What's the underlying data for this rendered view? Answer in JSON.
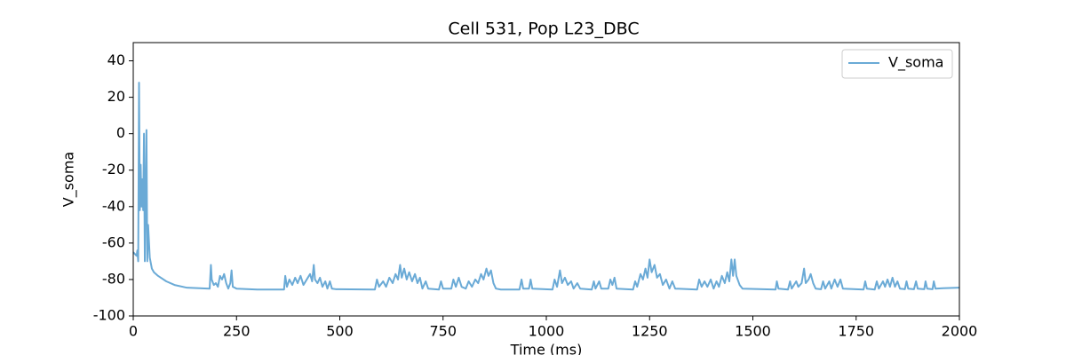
{
  "chart_data": {
    "type": "line",
    "title": "Cell 531, Pop L23_DBC",
    "xlabel": "Time (ms)",
    "ylabel": "V_soma",
    "xlim": [
      0,
      2000
    ],
    "ylim": [
      -100,
      50
    ],
    "xticks": [
      0,
      250,
      500,
      750,
      1000,
      1250,
      1500,
      1750,
      2000
    ],
    "yticks": [
      -100,
      -80,
      -60,
      -40,
      -20,
      0,
      20,
      40
    ],
    "legend": "upper right",
    "grid": false,
    "x": [
      0,
      4,
      8,
      10,
      12,
      14,
      16,
      18,
      20,
      22,
      24,
      26,
      28,
      30,
      32,
      34,
      36,
      40,
      45,
      50,
      60,
      80,
      100,
      130,
      185,
      188,
      190,
      195,
      200,
      205,
      210,
      215,
      220,
      225,
      230,
      235,
      238,
      241,
      250,
      300,
      365,
      368,
      372,
      378,
      385,
      392,
      398,
      405,
      412,
      420,
      428,
      433,
      437,
      440,
      446,
      452,
      458,
      465,
      470,
      476,
      481,
      490,
      585,
      590,
      595,
      605,
      612,
      620,
      628,
      635,
      641,
      646,
      650,
      656,
      662,
      668,
      675,
      682,
      688,
      694,
      700,
      708,
      714,
      740,
      745,
      750,
      770,
      775,
      781,
      788,
      795,
      805,
      812,
      820,
      828,
      835,
      842,
      848,
      855,
      860,
      866,
      872,
      878,
      890,
      935,
      940,
      944,
      958,
      962,
      966,
      1015,
      1020,
      1026,
      1033,
      1038,
      1045,
      1052,
      1060,
      1066,
      1075,
      1082,
      1110,
      1115,
      1119,
      1128,
      1133,
      1150,
      1155,
      1160,
      1165,
      1170,
      1210,
      1215,
      1220,
      1228,
      1234,
      1240,
      1245,
      1250,
      1255,
      1262,
      1268,
      1275,
      1282,
      1290,
      1298,
      1305,
      1312,
      1365,
      1370,
      1376,
      1383,
      1390,
      1398,
      1405,
      1412,
      1418,
      1425,
      1432,
      1438,
      1443,
      1448,
      1452,
      1456,
      1460,
      1468,
      1475,
      1555,
      1558,
      1562,
      1585,
      1590,
      1594,
      1605,
      1610,
      1618,
      1624,
      1628,
      1635,
      1640,
      1646,
      1652,
      1665,
      1670,
      1675,
      1685,
      1690,
      1698,
      1705,
      1712,
      1718,
      1768,
      1772,
      1776,
      1795,
      1800,
      1805,
      1815,
      1820,
      1826,
      1832,
      1838,
      1844,
      1850,
      1856,
      1868,
      1872,
      1876,
      1890,
      1895,
      1899,
      1915,
      1918,
      1922,
      1935,
      1938,
      1942,
      1960,
      2000
    ],
    "series": [
      {
        "name": "V_soma",
        "color": "#6aaad6",
        "values": [
          -65,
          -66,
          -67,
          -64,
          -70,
          28,
          -42,
          -17,
          -40,
          -25,
          -42,
          0,
          -70,
          -35,
          2,
          -70,
          -50,
          -68,
          -74,
          -76,
          -78,
          -81,
          -83,
          -84.5,
          -85,
          -72,
          -80,
          -83,
          -82,
          -84,
          -78,
          -80,
          -77,
          -82,
          -85,
          -82,
          -75,
          -84,
          -85,
          -85.5,
          -85.5,
          -78,
          -84,
          -80,
          -83,
          -79,
          -82,
          -78,
          -83,
          -80,
          -77,
          -81,
          -72,
          -80,
          -82,
          -79,
          -84,
          -81,
          -85,
          -81,
          -85,
          -85.3,
          -85.5,
          -80,
          -84,
          -81,
          -84,
          -79,
          -82,
          -77,
          -80,
          -72,
          -79,
          -74,
          -80,
          -76,
          -81,
          -77,
          -82,
          -79,
          -85,
          -81,
          -85,
          -85.5,
          -81,
          -85,
          -85,
          -80,
          -84,
          -79,
          -84,
          -85,
          -81,
          -84,
          -80,
          -82,
          -77,
          -80,
          -74,
          -78,
          -75,
          -82,
          -85,
          -85.5,
          -85.5,
          -80,
          -85,
          -85,
          -80,
          -85,
          -85.5,
          -80,
          -84,
          -75,
          -82,
          -79,
          -83,
          -81,
          -85,
          -82,
          -85,
          -85.5,
          -81,
          -85,
          -81,
          -85,
          -85,
          -80,
          -83,
          -79,
          -85,
          -85.5,
          -81,
          -84,
          -77,
          -80,
          -74,
          -79,
          -69,
          -76,
          -72,
          -79,
          -77,
          -83,
          -80,
          -85,
          -81,
          -85,
          -85.5,
          -80,
          -84,
          -81,
          -84,
          -80,
          -85,
          -81,
          -84,
          -78,
          -82,
          -76,
          -81,
          -69,
          -78,
          -69,
          -78,
          -83,
          -85,
          -85.5,
          -81,
          -85,
          -85.5,
          -81,
          -85,
          -81,
          -84,
          -82,
          -74,
          -82,
          -80,
          -77,
          -82,
          -85,
          -85.3,
          -81,
          -85,
          -81,
          -85,
          -80,
          -84,
          -80,
          -85,
          -85.5,
          -81,
          -85,
          -85.5,
          -81,
          -85,
          -81,
          -84,
          -80,
          -84,
          -79,
          -84,
          -81,
          -85,
          -85.3,
          -81,
          -85,
          -85.3,
          -81,
          -85,
          -85.3,
          -81,
          -85,
          -85.3,
          -81,
          -85,
          -84.8,
          -84.5
        ]
      }
    ]
  }
}
